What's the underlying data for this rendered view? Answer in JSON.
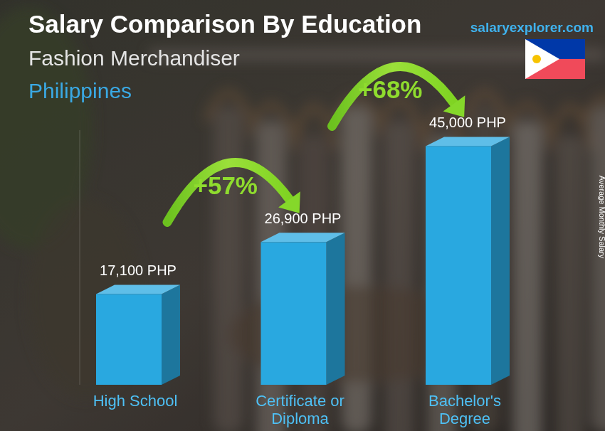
{
  "chart_data": {
    "type": "bar",
    "title": "Salary Comparison By Education",
    "subtitle": "Fashion Merchandiser",
    "country": "Philippines",
    "source": "salaryexplorer.com",
    "y_label": "Average Monthly Salary",
    "categories": [
      "High School",
      "Certificate or Diploma",
      "Bachelor's Degree"
    ],
    "values": [
      17100,
      26900,
      45000
    ],
    "value_labels": [
      "17,100 PHP",
      "26,900 PHP",
      "45,000 PHP"
    ],
    "annotations": [
      "+57%",
      "+68%"
    ],
    "color": "#29a8e0",
    "ylim": [
      0,
      48000
    ],
    "yticks": [],
    "tick_labels": "x",
    "data_labels": true,
    "grid": false
  }
}
